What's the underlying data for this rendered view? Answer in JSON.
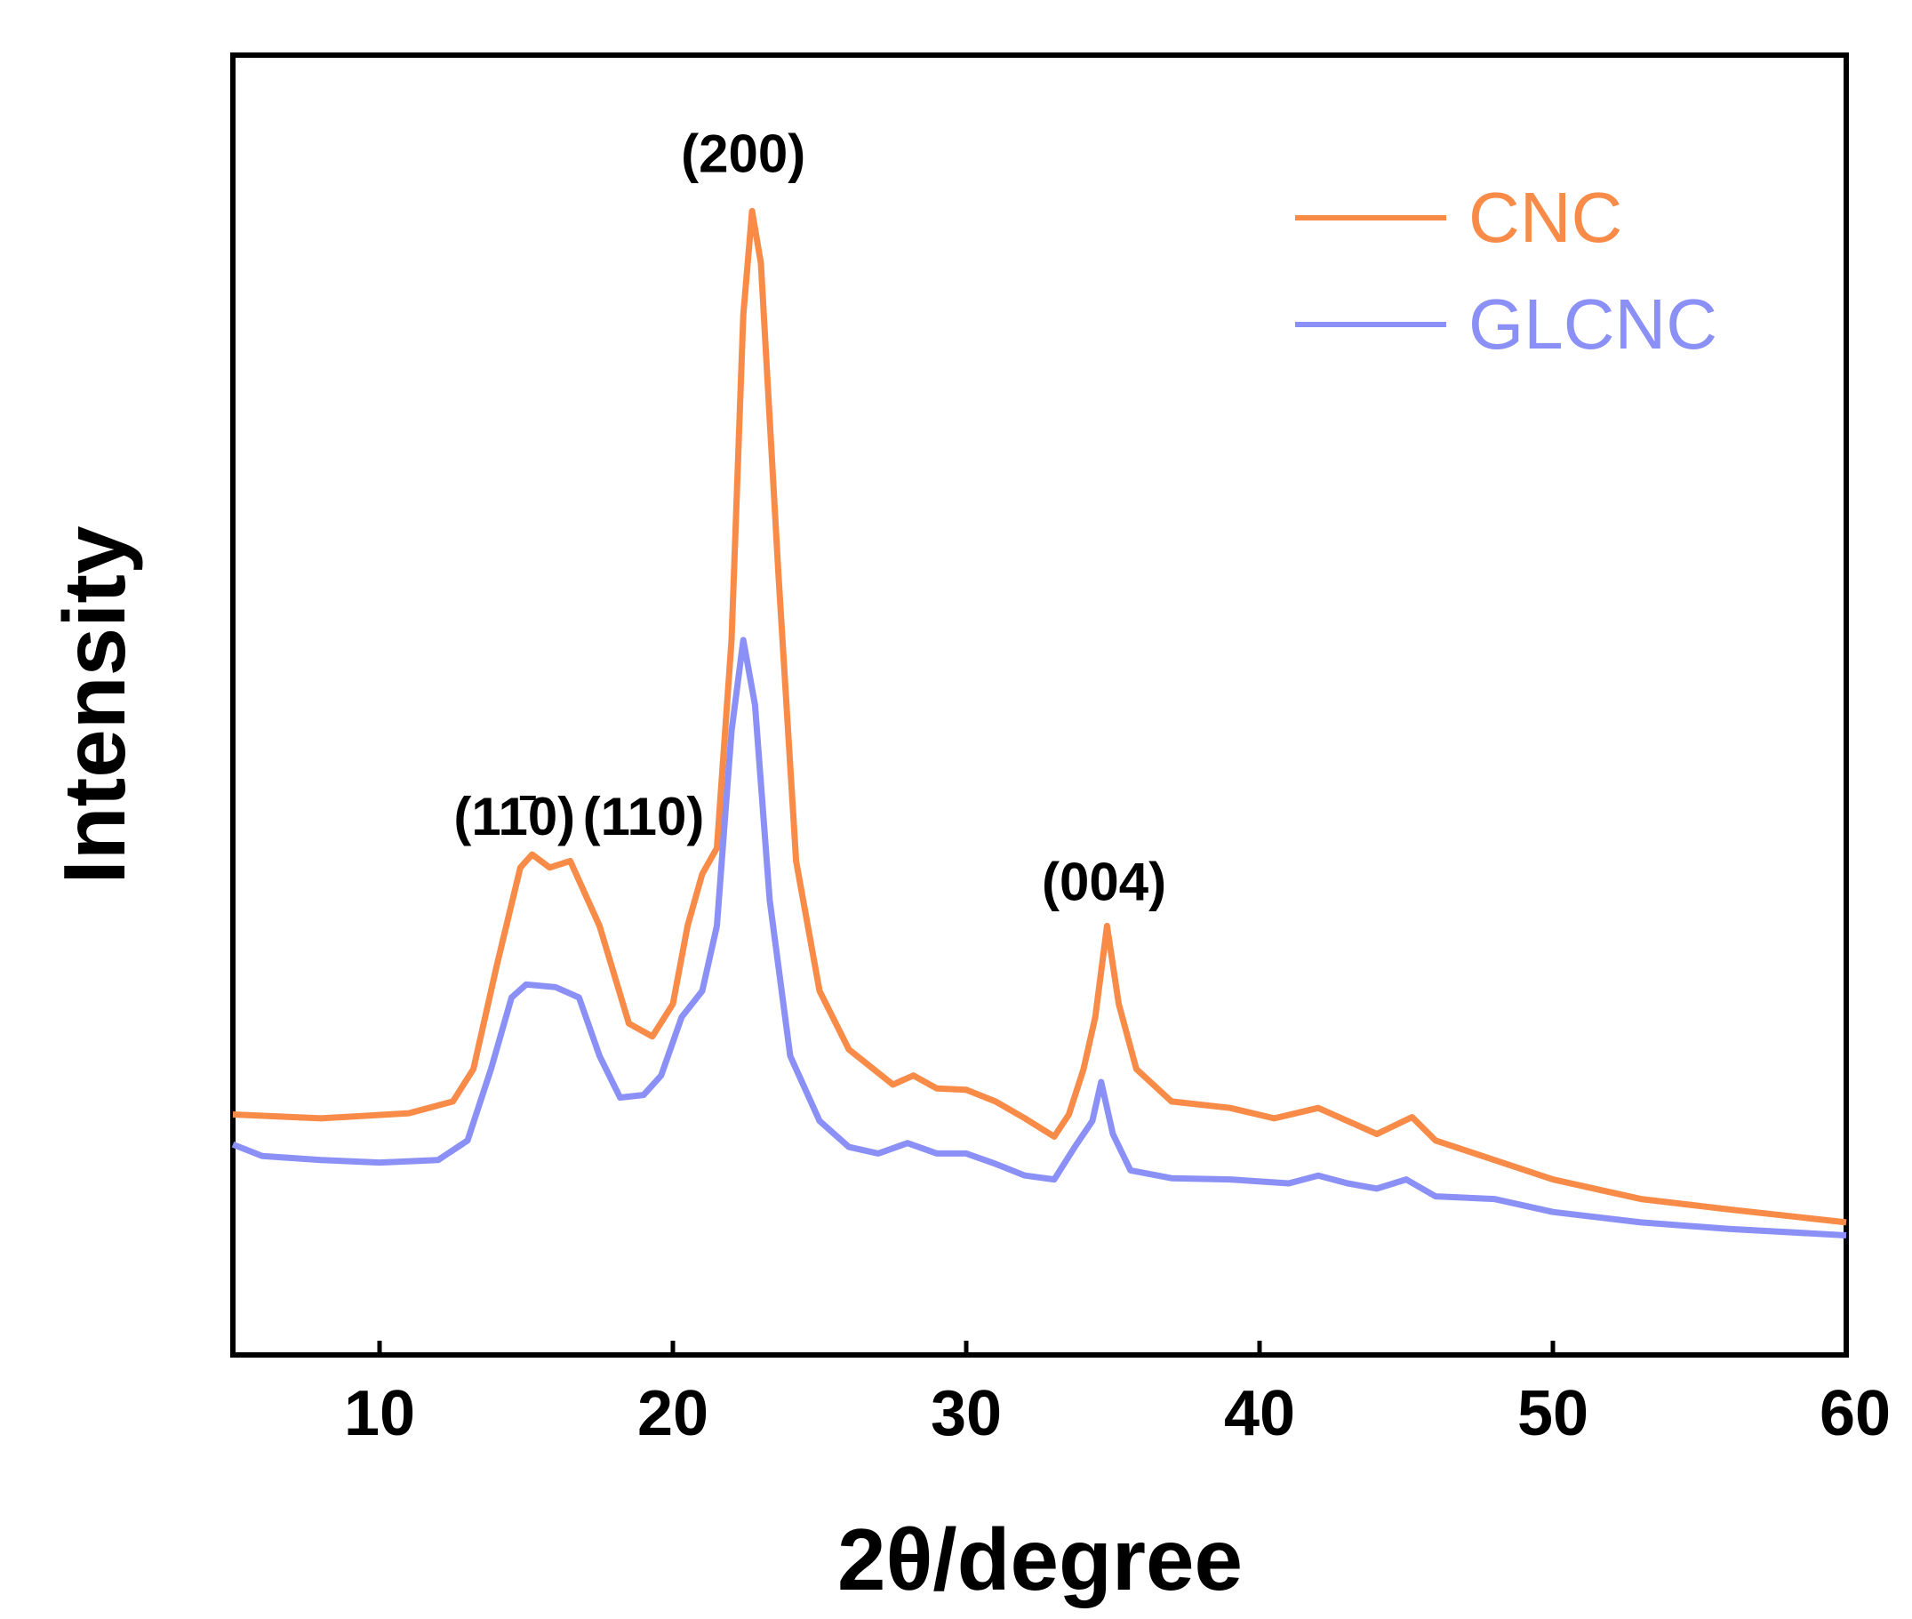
{
  "chart_data": {
    "type": "line",
    "xlabel": "2θ/degree",
    "ylabel": "Intensity",
    "xlim": [
      5,
      60
    ],
    "ylim": [
      0,
      100
    ],
    "x_ticks": [
      "10",
      "20",
      "30",
      "40",
      "50",
      "60"
    ],
    "legend_position": "top-right",
    "grid": false,
    "series": [
      {
        "name": "CNC",
        "color": "#f98b48",
        "points": [
          [
            5,
            18.5
          ],
          [
            8,
            18.2
          ],
          [
            11,
            18.6
          ],
          [
            12.5,
            19.5
          ],
          [
            13.2,
            22
          ],
          [
            14,
            30
          ],
          [
            14.8,
            37.5
          ],
          [
            15.2,
            38.5
          ],
          [
            15.8,
            37.5
          ],
          [
            16.5,
            38
          ],
          [
            17.5,
            33
          ],
          [
            18.5,
            25.5
          ],
          [
            19.3,
            24.5
          ],
          [
            20,
            27
          ],
          [
            20.5,
            33
          ],
          [
            21,
            37
          ],
          [
            21.5,
            39
          ],
          [
            22,
            55
          ],
          [
            22.4,
            80
          ],
          [
            22.7,
            88
          ],
          [
            23,
            84
          ],
          [
            23.6,
            60
          ],
          [
            24.2,
            38
          ],
          [
            25,
            28
          ],
          [
            26,
            23.5
          ],
          [
            27.5,
            20.8
          ],
          [
            28.2,
            21.5
          ],
          [
            29,
            20.5
          ],
          [
            30,
            20.4
          ],
          [
            31,
            19.5
          ],
          [
            32,
            18.2
          ],
          [
            33,
            16.8
          ],
          [
            33.5,
            18.5
          ],
          [
            34,
            22
          ],
          [
            34.4,
            26
          ],
          [
            34.8,
            33
          ],
          [
            35.2,
            27
          ],
          [
            35.8,
            22
          ],
          [
            37,
            19.5
          ],
          [
            39,
            19
          ],
          [
            40.5,
            18.2
          ],
          [
            42,
            19
          ],
          [
            43,
            18
          ],
          [
            44,
            17
          ],
          [
            45.2,
            18.3
          ],
          [
            46,
            16.5
          ],
          [
            48,
            15
          ],
          [
            50,
            13.5
          ],
          [
            53,
            12
          ],
          [
            56,
            11.2
          ],
          [
            60,
            10.2
          ]
        ]
      },
      {
        "name": "GLCNC",
        "color": "#8b90f7",
        "points": [
          [
            5,
            16.2
          ],
          [
            6,
            15.3
          ],
          [
            8,
            15
          ],
          [
            10,
            14.8
          ],
          [
            12,
            15
          ],
          [
            13,
            16.5
          ],
          [
            13.8,
            22
          ],
          [
            14.5,
            27.5
          ],
          [
            15,
            28.5
          ],
          [
            16,
            28.3
          ],
          [
            16.8,
            27.5
          ],
          [
            17.5,
            23
          ],
          [
            18.2,
            19.8
          ],
          [
            19,
            20
          ],
          [
            19.6,
            21.5
          ],
          [
            20.3,
            26
          ],
          [
            21,
            28
          ],
          [
            21.5,
            33
          ],
          [
            22,
            48
          ],
          [
            22.4,
            55
          ],
          [
            22.8,
            50
          ],
          [
            23.3,
            35
          ],
          [
            24,
            23
          ],
          [
            25,
            18
          ],
          [
            26,
            16
          ],
          [
            27,
            15.5
          ],
          [
            28,
            16.3
          ],
          [
            29,
            15.5
          ],
          [
            30,
            15.5
          ],
          [
            31,
            14.7
          ],
          [
            32,
            13.8
          ],
          [
            33,
            13.5
          ],
          [
            33.7,
            16
          ],
          [
            34.3,
            18
          ],
          [
            34.6,
            21
          ],
          [
            35,
            17
          ],
          [
            35.6,
            14.2
          ],
          [
            37,
            13.6
          ],
          [
            39,
            13.5
          ],
          [
            41,
            13.2
          ],
          [
            42,
            13.8
          ],
          [
            43,
            13.2
          ],
          [
            44,
            12.8
          ],
          [
            45,
            13.5
          ],
          [
            46,
            12.2
          ],
          [
            48,
            12
          ],
          [
            50,
            11
          ],
          [
            53,
            10.2
          ],
          [
            56,
            9.7
          ],
          [
            60,
            9.2
          ]
        ]
      }
    ],
    "annotations": [
      {
        "text": "(11̄0)",
        "x": 14.6,
        "y": 40
      },
      {
        "text": "(110)",
        "x": 19,
        "y": 40
      },
      {
        "text": "(200)",
        "x": 22.4,
        "y": 91
      },
      {
        "text": "(004)",
        "x": 34.7,
        "y": 35
      }
    ]
  }
}
